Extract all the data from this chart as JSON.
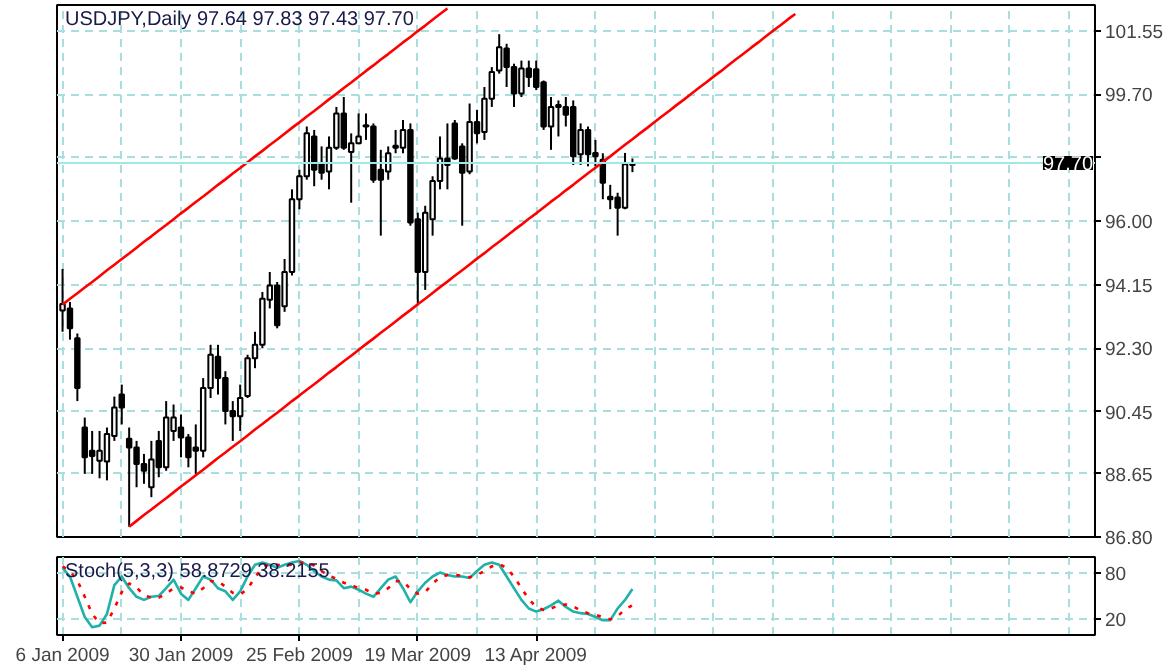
{
  "chart_data": [
    {
      "type": "candlestick",
      "title": "USDJPY,Daily  97.64 97.83 97.43 97.70",
      "categories": [
        null,
        null,
        null,
        null,
        null,
        null,
        null,
        null,
        null,
        null,
        null,
        null,
        null,
        null,
        null,
        null,
        null,
        null,
        null,
        null,
        null,
        null,
        null,
        null,
        null,
        null,
        null,
        null,
        null,
        null,
        null,
        null,
        null,
        null,
        null,
        null,
        null,
        null,
        null,
        null,
        null,
        null,
        null,
        null,
        null,
        null,
        null,
        null,
        null,
        null,
        null,
        null,
        null,
        null,
        null,
        null,
        null,
        null,
        null,
        null,
        null,
        null,
        null,
        null,
        null,
        null,
        null,
        null,
        null,
        null,
        null,
        null,
        null,
        null,
        null,
        null,
        null,
        null,
        null,
        null,
        null,
        null,
        null,
        null,
        null,
        null,
        null,
        null,
        null,
        null,
        null,
        null,
        null,
        null,
        null,
        null,
        null,
        null,
        null,
        null,
        null,
        null,
        null,
        null,
        null,
        null,
        null,
        null,
        null,
        null,
        null,
        null,
        null,
        null,
        null,
        null,
        null,
        null,
        null,
        null,
        null,
        null,
        null,
        null,
        null,
        null,
        null,
        null,
        null,
        null,
        null,
        null,
        null,
        null,
        null,
        null,
        null,
        null,
        null,
        null
      ],
      "ohlc": [
        [
          93.4,
          94.61,
          92.78,
          93.59
        ],
        [
          93.46,
          93.65,
          92.55,
          92.88
        ],
        [
          92.59,
          92.73,
          90.76,
          91.14
        ],
        [
          89.99,
          90.28,
          88.64,
          89.12
        ],
        [
          89.31,
          89.89,
          88.64,
          89.16
        ],
        [
          89.02,
          89.89,
          88.51,
          89.31
        ],
        [
          89.0,
          89.99,
          88.45,
          89.8
        ],
        [
          89.74,
          90.89,
          89.6,
          90.57
        ],
        [
          90.95,
          91.24,
          90.08,
          90.57
        ],
        [
          89.66,
          89.99,
          87.1,
          89.41
        ],
        [
          89.41,
          89.6,
          88.25,
          88.93
        ],
        [
          88.93,
          89.22,
          88.35,
          88.73
        ],
        [
          88.25,
          89.6,
          87.96,
          89.06
        ],
        [
          89.6,
          89.89,
          88.54,
          88.83
        ],
        [
          88.83,
          90.76,
          88.73,
          90.28
        ],
        [
          89.89,
          90.66,
          89.6,
          90.28
        ],
        [
          89.99,
          90.37,
          89.12,
          89.7
        ],
        [
          89.7,
          89.8,
          88.83,
          89.12
        ],
        [
          89.41,
          90.08,
          88.64,
          89.31
        ],
        [
          89.31,
          91.43,
          89.12,
          91.14
        ],
        [
          91.14,
          92.4,
          90.85,
          92.11
        ],
        [
          92.05,
          92.4,
          90.95,
          91.43
        ],
        [
          91.43,
          91.63,
          90.08,
          90.47
        ],
        [
          90.47,
          90.76,
          89.6,
          90.32
        ],
        [
          90.32,
          91.24,
          89.89,
          90.85
        ],
        [
          90.91,
          92.11,
          90.85,
          92.01
        ],
        [
          92.01,
          92.78,
          91.72,
          92.4
        ],
        [
          92.4,
          93.94,
          92.3,
          93.74
        ],
        [
          93.71,
          94.52,
          93.46,
          94.13
        ],
        [
          94.13,
          94.23,
          92.88,
          92.97
        ],
        [
          93.52,
          94.9,
          93.36,
          94.52
        ],
        [
          94.52,
          96.93,
          94.42,
          96.64
        ],
        [
          96.64,
          97.5,
          96.35,
          97.31
        ],
        [
          97.31,
          98.76,
          97.21,
          98.56
        ],
        [
          98.47,
          98.66,
          97.02,
          97.5
        ],
        [
          97.7,
          98.18,
          97.21,
          97.41
        ],
        [
          97.45,
          98.47,
          96.93,
          98.14
        ],
        [
          98.14,
          99.33,
          98.08,
          99.14
        ],
        [
          99.14,
          99.62,
          98.08,
          98.14
        ],
        [
          98.02,
          98.56,
          96.54,
          98.27
        ],
        [
          98.27,
          99.14,
          98.27,
          98.47
        ],
        [
          98.8,
          99.14,
          98.37,
          98.76
        ],
        [
          98.76,
          98.85,
          97.12,
          97.21
        ],
        [
          97.5,
          98.08,
          95.58,
          97.21
        ],
        [
          97.45,
          98.18,
          97.21,
          97.98
        ],
        [
          98.14,
          98.66,
          97.98,
          98.2
        ],
        [
          98.14,
          98.95,
          97.98,
          98.66
        ],
        [
          98.66,
          98.85,
          95.87,
          95.96
        ],
        [
          96.06,
          96.25,
          93.55,
          94.52
        ],
        [
          94.52,
          96.45,
          94.0,
          96.25
        ],
        [
          96.06,
          97.31,
          95.58,
          97.17
        ],
        [
          97.17,
          98.47,
          96.93,
          97.83
        ],
        [
          97.83,
          98.85,
          96.93,
          97.64
        ],
        [
          98.85,
          98.95,
          97.79,
          97.83
        ],
        [
          98.18,
          98.27,
          95.87,
          97.41
        ],
        [
          97.45,
          99.43,
          97.37,
          98.89
        ],
        [
          98.89,
          99.24,
          98.27,
          98.56
        ],
        [
          98.6,
          99.91,
          98.37,
          99.57
        ],
        [
          99.57,
          100.49,
          99.33,
          100.35
        ],
        [
          100.39,
          101.45,
          100.3,
          101.07
        ],
        [
          101.03,
          101.17,
          99.91,
          100.49
        ],
        [
          100.49,
          100.59,
          99.33,
          99.72
        ],
        [
          99.72,
          100.68,
          99.62,
          100.45
        ],
        [
          100.45,
          100.68,
          99.91,
          100.2
        ],
        [
          100.43,
          100.68,
          99.82,
          99.91
        ],
        [
          100.05,
          100.1,
          98.66,
          98.76
        ],
        [
          98.76,
          99.62,
          98.08,
          99.33
        ],
        [
          99.39,
          99.52,
          98.47,
          99.33
        ],
        [
          99.33,
          99.62,
          98.76,
          99.1
        ],
        [
          99.33,
          99.52,
          97.64,
          97.89
        ],
        [
          97.95,
          98.85,
          97.64,
          98.66
        ],
        [
          98.66,
          98.76,
          97.6,
          97.95
        ],
        [
          97.99,
          98.37,
          97.6,
          97.89
        ],
        [
          97.79,
          97.98,
          96.64,
          97.12
        ],
        [
          96.71,
          97.06,
          96.35,
          96.64
        ],
        [
          96.69,
          96.83,
          95.58,
          96.39
        ],
        [
          96.39,
          97.99,
          96.35,
          97.66
        ],
        [
          97.64,
          97.83,
          97.43,
          97.7
        ],
        null,
        null,
        null,
        null,
        null,
        null,
        null,
        null,
        null,
        null,
        null,
        null,
        null,
        null,
        null,
        null,
        null,
        null,
        null,
        null,
        null,
        null,
        null,
        null,
        null,
        null,
        null,
        null,
        null,
        null,
        null,
        null,
        null,
        null,
        null,
        null,
        null,
        null,
        null,
        null,
        null,
        null,
        null,
        null,
        null,
        null,
        null,
        null,
        null,
        null,
        null,
        null,
        null,
        null,
        null,
        null,
        null,
        null,
        null,
        null,
        null,
        null
      ],
      "series": [
        {
          "type": "line",
          "color": "#ff0000",
          "values": [
            93.57,
            93.74,
            93.9,
            94.07,
            94.23,
            94.4,
            94.57,
            94.73,
            94.9,
            95.06,
            95.23,
            95.4,
            95.56,
            95.73,
            95.89,
            96.06,
            96.23,
            96.39,
            96.56,
            96.72,
            96.89,
            97.06,
            97.22,
            97.39,
            97.55,
            97.72,
            97.89,
            98.05,
            98.22,
            98.38,
            98.55,
            98.72,
            98.88,
            99.05,
            99.21,
            99.38,
            99.55,
            99.71,
            99.88,
            100.04,
            100.21,
            100.38,
            100.54,
            100.71,
            100.87,
            101.04,
            101.21,
            101.37,
            101.54,
            101.7,
            101.87,
            102.04,
            102.2,
            null,
            null,
            null,
            null,
            null,
            null,
            null,
            null,
            null,
            null,
            null,
            null,
            null,
            null,
            null,
            null,
            null,
            null,
            null,
            null,
            null,
            null,
            null,
            null,
            null,
            null,
            null,
            null,
            null,
            null,
            null,
            null,
            null,
            null,
            null,
            null,
            null,
            null,
            null,
            null,
            null,
            null,
            null,
            null,
            null,
            null,
            null,
            null,
            null,
            null,
            null,
            null,
            null,
            null,
            null,
            null,
            null,
            null,
            null,
            null,
            null,
            null,
            null,
            null,
            null,
            null,
            null,
            null,
            null,
            null,
            null,
            null,
            null,
            null,
            null,
            null,
            null,
            null,
            null,
            null,
            null,
            null,
            null,
            null,
            null,
            null,
            null
          ]
        },
        {
          "type": "line",
          "color": "#ff0000",
          "values": [
            null,
            null,
            null,
            null,
            null,
            null,
            null,
            null,
            null,
            87.1,
            87.27,
            87.44,
            87.6,
            87.77,
            87.93,
            88.1,
            88.27,
            88.43,
            88.6,
            88.76,
            88.93,
            89.1,
            89.26,
            89.43,
            89.59,
            89.76,
            89.93,
            90.09,
            90.26,
            90.42,
            90.59,
            90.76,
            90.92,
            91.09,
            91.25,
            91.42,
            91.59,
            91.75,
            91.92,
            92.08,
            92.25,
            92.42,
            92.58,
            92.75,
            92.91,
            93.08,
            93.25,
            93.41,
            93.58,
            93.74,
            93.91,
            94.08,
            94.24,
            94.41,
            94.57,
            94.74,
            94.91,
            95.07,
            95.24,
            95.4,
            95.57,
            95.74,
            95.9,
            96.07,
            96.23,
            96.4,
            96.57,
            96.73,
            96.9,
            97.06,
            97.23,
            97.4,
            97.56,
            97.73,
            97.89,
            98.06,
            98.23,
            98.39,
            98.56,
            98.72,
            98.89,
            99.06,
            99.22,
            99.39,
            99.55,
            99.72,
            99.89,
            100.05,
            100.22,
            100.38,
            100.55,
            100.72,
            100.88,
            101.05,
            101.21,
            101.38,
            101.55,
            101.71,
            101.88,
            102.04,
            null,
            null,
            null,
            null,
            null,
            null,
            null,
            null,
            null,
            null,
            null,
            null,
            null,
            null,
            null,
            null,
            null,
            null,
            null,
            null,
            null,
            null,
            null,
            null,
            null,
            null,
            null,
            null,
            null,
            null,
            null,
            null,
            null,
            null,
            null,
            null,
            null,
            null,
            null,
            null
          ]
        }
      ],
      "ylim": [
        86.8,
        102.3
      ],
      "yticks": [
        {
          "value": 86.8,
          "label": "86.80"
        },
        {
          "value": 88.65,
          "label": "88.65"
        },
        {
          "value": 90.45,
          "label": "90.45"
        },
        {
          "value": 92.3,
          "label": "92.30"
        },
        {
          "value": 94.15,
          "label": "94.15"
        },
        {
          "value": 96.0,
          "label": "96.00"
        },
        {
          "value": 97.85,
          "label": null
        },
        {
          "value": 99.7,
          "label": "99.70"
        },
        {
          "value": 101.55,
          "label": "101.55"
        }
      ],
      "ref_lines": [
        {
          "axis": "y",
          "value": 97.7,
          "label": "97.70",
          "color": "#a0e8e8"
        }
      ],
      "grid": true
    },
    {
      "type": "line",
      "title": "Stoch(5,3,3) 58.8729 38.2155",
      "categories": [
        "6 Jan 2009",
        null,
        null,
        null,
        null,
        null,
        null,
        null,
        null,
        null,
        null,
        null,
        null,
        null,
        null,
        null,
        "30 Jan 2009",
        null,
        null,
        null,
        null,
        null,
        null,
        null,
        null,
        null,
        null,
        null,
        null,
        null,
        null,
        null,
        "25 Feb 2009",
        null,
        null,
        null,
        null,
        null,
        null,
        null,
        null,
        null,
        null,
        null,
        null,
        null,
        null,
        null,
        "19 Mar 2009",
        null,
        null,
        null,
        null,
        null,
        null,
        null,
        null,
        null,
        null,
        null,
        null,
        null,
        null,
        null,
        "13 Apr 2009",
        null,
        null,
        null,
        null,
        null,
        null,
        null,
        null,
        null,
        null,
        null,
        null,
        null,
        null,
        null,
        null,
        null,
        null,
        null,
        null,
        null,
        null,
        null,
        null,
        null,
        null,
        null,
        null,
        null,
        null,
        null,
        null,
        null,
        null,
        null,
        null,
        null,
        null,
        null,
        null,
        null,
        null,
        null,
        null,
        null,
        null,
        null,
        null,
        null,
        null,
        null,
        null,
        null,
        null,
        null,
        null,
        null,
        null,
        null,
        null,
        null,
        null,
        null,
        null,
        null,
        null,
        null,
        null,
        null,
        null,
        null,
        null,
        null,
        null,
        null
      ],
      "series": [
        {
          "color": "#20b2aa",
          "line_style": "solid",
          "values": [
            86,
            75,
            49,
            23,
            10,
            12,
            27,
            64,
            75,
            60,
            49,
            45,
            49,
            50,
            60,
            71,
            53,
            45,
            60,
            75,
            71,
            60,
            56,
            45,
            56,
            75,
            90,
            93,
            90,
            86,
            90,
            93,
            95,
            90,
            82,
            75,
            71,
            70,
            60,
            62,
            58,
            53,
            49,
            60,
            71,
            75,
            60,
            42,
            56,
            67,
            75,
            80,
            77,
            75,
            75,
            73,
            82,
            90,
            93,
            90,
            75,
            60,
            45,
            34,
            30,
            33,
            38,
            44,
            36,
            30,
            28,
            27,
            23,
            19,
            19,
            34,
            45,
            59,
            null,
            null,
            null,
            null,
            null,
            null,
            null,
            null,
            null,
            null,
            null,
            null,
            null,
            null,
            null,
            null,
            null,
            null,
            null,
            null,
            null,
            null,
            null,
            null,
            null,
            null,
            null,
            null,
            null,
            null,
            null,
            null,
            null,
            null,
            null,
            null,
            null,
            null,
            null,
            null,
            null,
            null,
            null,
            null,
            null,
            null,
            null,
            null,
            null,
            null,
            null,
            null,
            null,
            null,
            null,
            null,
            null,
            null,
            null,
            null,
            null,
            null
          ]
        },
        {
          "color": "#ff0000",
          "line_style": "dotted",
          "values": [
            88,
            82,
            70,
            49,
            27,
            15,
            16,
            34,
            55,
            66,
            61,
            51,
            48,
            48,
            53,
            60,
            61,
            56,
            53,
            60,
            69,
            69,
            62,
            54,
            52,
            59,
            74,
            86,
            91,
            90,
            89,
            90,
            93,
            93,
            89,
            82,
            76,
            72,
            67,
            64,
            60,
            58,
            53,
            54,
            60,
            69,
            69,
            59,
            53,
            55,
            66,
            74,
            77,
            77,
            76,
            74,
            77,
            82,
            88,
            91,
            86,
            75,
            60,
            46,
            36,
            32,
            34,
            38,
            39,
            37,
            31,
            28,
            26,
            23,
            20,
            24,
            33,
            38,
            null,
            null,
            null,
            null,
            null,
            null,
            null,
            null,
            null,
            null,
            null,
            null,
            null,
            null,
            null,
            null,
            null,
            null,
            null,
            null,
            null,
            null,
            null,
            null,
            null,
            null,
            null,
            null,
            null,
            null,
            null,
            null,
            null,
            null,
            null,
            null,
            null,
            null,
            null,
            null,
            null,
            null,
            null,
            null,
            null,
            null,
            null,
            null,
            null,
            null,
            null,
            null,
            null,
            null,
            null,
            null,
            null,
            null,
            null,
            null,
            null,
            null
          ]
        }
      ],
      "ylim": [
        0,
        100
      ],
      "yticks": [
        20,
        80
      ],
      "grid": true
    }
  ]
}
